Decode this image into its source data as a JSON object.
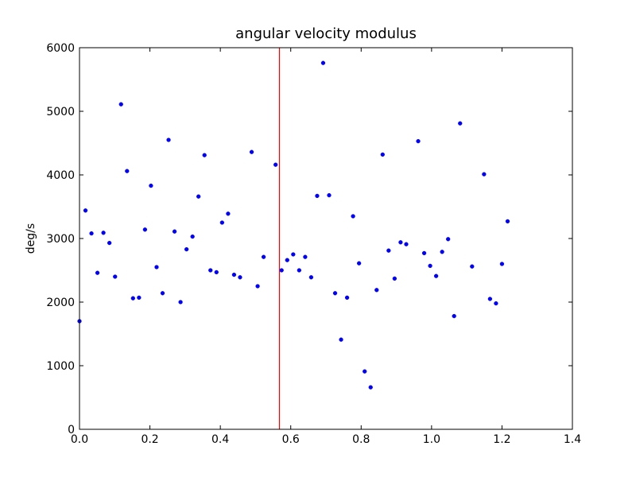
{
  "chart_data": {
    "type": "scatter",
    "title": "angular velocity modulus",
    "xlabel": "",
    "ylabel": "deg/s",
    "xlim": [
      0.0,
      1.4
    ],
    "ylim": [
      0,
      6000
    ],
    "x_ticks": [
      "0.0",
      "0.2",
      "0.4",
      "0.6",
      "0.8",
      "1.0",
      "1.2",
      "1.4"
    ],
    "y_ticks": [
      "0",
      "1000",
      "2000",
      "3000",
      "4000",
      "5000",
      "6000"
    ],
    "grid": false,
    "legend": "none",
    "vertical_line": {
      "x": 0.568,
      "color": "#ff0000"
    },
    "series": [
      {
        "color": "#0000ff",
        "points": [
          [
            0.0,
            1700
          ],
          [
            0.017,
            3440
          ],
          [
            0.034,
            3080
          ],
          [
            0.051,
            2460
          ],
          [
            0.068,
            3090
          ],
          [
            0.085,
            2930
          ],
          [
            0.101,
            2400
          ],
          [
            0.118,
            5110
          ],
          [
            0.135,
            4060
          ],
          [
            0.152,
            2060
          ],
          [
            0.169,
            2070
          ],
          [
            0.186,
            3140
          ],
          [
            0.203,
            3830
          ],
          [
            0.219,
            2550
          ],
          [
            0.236,
            2140
          ],
          [
            0.253,
            4550
          ],
          [
            0.27,
            3110
          ],
          [
            0.287,
            2000
          ],
          [
            0.304,
            2830
          ],
          [
            0.321,
            3030
          ],
          [
            0.338,
            3660
          ],
          [
            0.355,
            4310
          ],
          [
            0.372,
            2500
          ],
          [
            0.389,
            2470
          ],
          [
            0.405,
            3250
          ],
          [
            0.422,
            3390
          ],
          [
            0.439,
            2430
          ],
          [
            0.456,
            2390
          ],
          [
            0.489,
            4360
          ],
          [
            0.506,
            2250
          ],
          [
            0.523,
            2710
          ],
          [
            0.557,
            4160
          ],
          [
            0.574,
            2500
          ],
          [
            0.59,
            2660
          ],
          [
            0.607,
            2750
          ],
          [
            0.624,
            2500
          ],
          [
            0.641,
            2710
          ],
          [
            0.658,
            2390
          ],
          [
            0.675,
            3670
          ],
          [
            0.692,
            5760
          ],
          [
            0.709,
            3680
          ],
          [
            0.726,
            2140
          ],
          [
            0.743,
            1410
          ],
          [
            0.76,
            2070
          ],
          [
            0.777,
            3350
          ],
          [
            0.794,
            2610
          ],
          [
            0.81,
            910
          ],
          [
            0.827,
            660
          ],
          [
            0.844,
            2190
          ],
          [
            0.861,
            4320
          ],
          [
            0.878,
            2810
          ],
          [
            0.895,
            2370
          ],
          [
            0.912,
            2940
          ],
          [
            0.928,
            2910
          ],
          [
            0.962,
            4530
          ],
          [
            0.979,
            2770
          ],
          [
            0.996,
            2570
          ],
          [
            1.013,
            2410
          ],
          [
            1.03,
            2790
          ],
          [
            1.047,
            2990
          ],
          [
            1.064,
            1780
          ],
          [
            1.081,
            4810
          ],
          [
            1.115,
            2560
          ],
          [
            1.149,
            4010
          ],
          [
            1.166,
            2050
          ],
          [
            1.183,
            1980
          ],
          [
            1.2,
            2600
          ],
          [
            1.216,
            3270
          ]
        ]
      }
    ]
  }
}
